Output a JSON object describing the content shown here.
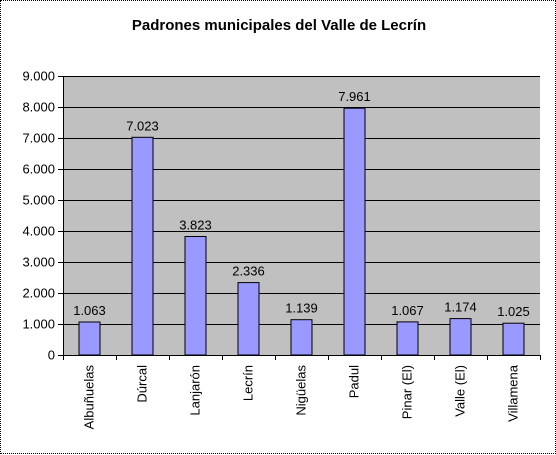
{
  "chart_data": {
    "type": "bar",
    "title": "Padrones municipales del Valle de Lecrín",
    "categories": [
      "Albuñuelas",
      "Dúrcal",
      "Lanjarón",
      "Lecrín",
      "Nigüelas",
      "Padul",
      "Pinar (El)",
      "Valle (El)",
      "Villamena"
    ],
    "values": [
      1063,
      7023,
      3823,
      2336,
      1139,
      7961,
      1067,
      1174,
      1025
    ],
    "value_labels": [
      "1.063",
      "7.023",
      "3.823",
      "2.336",
      "1.139",
      "7.961",
      "1.067",
      "1.174",
      "1.025"
    ],
    "ylim": [
      0,
      9000
    ],
    "yticks": [
      0,
      1000,
      2000,
      3000,
      4000,
      5000,
      6000,
      7000,
      8000,
      9000
    ],
    "ytick_labels": [
      "0",
      "1.000",
      "2.000",
      "3.000",
      "4.000",
      "5.000",
      "6.000",
      "7.000",
      "8.000",
      "9.000"
    ],
    "grid": true,
    "legend": false,
    "colors": {
      "plot_background": "#c0c0c0",
      "bar_fill": "#9999ff",
      "bar_stroke": "#000000",
      "grid": "#000000"
    }
  }
}
